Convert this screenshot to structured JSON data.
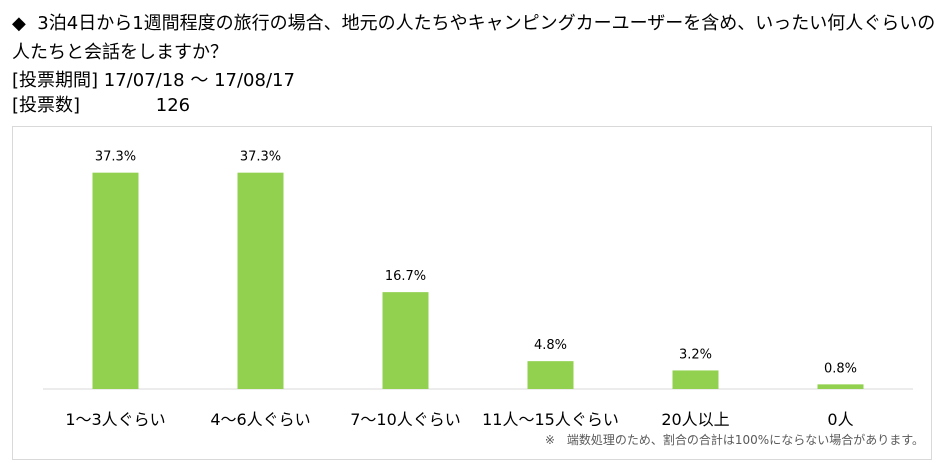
{
  "header": {
    "bullet": "◆",
    "question_line1": "3泊4日から1週間程度の旅行の場合、地元の人たちやキャンピングカーユーザーを含め、いったい何人ぐらいの",
    "question_line2": "人たちと会話をしますか？",
    "period_label": "[投票期間]",
    "period_value": "17/07/18 〜 17/08/17",
    "votes_label": "[投票数]",
    "votes_value": "126"
  },
  "chart_data": {
    "type": "bar",
    "categories": [
      "1〜3人ぐらい",
      "4〜6人ぐらい",
      "7〜10人ぐらい",
      "11人〜15人ぐらい",
      "20人以上",
      "0人"
    ],
    "values": [
      37.3,
      37.3,
      16.7,
      4.8,
      3.2,
      0.8
    ],
    "data_labels": [
      "37.3%",
      "37.3%",
      "16.7%",
      "4.8%",
      "3.2%",
      "0.8%"
    ],
    "bar_color": "#92d050",
    "ylim": [
      0,
      40
    ],
    "grid": false,
    "note": "※　端数処理のため、割合の合計は100%にならない場合があります。"
  }
}
